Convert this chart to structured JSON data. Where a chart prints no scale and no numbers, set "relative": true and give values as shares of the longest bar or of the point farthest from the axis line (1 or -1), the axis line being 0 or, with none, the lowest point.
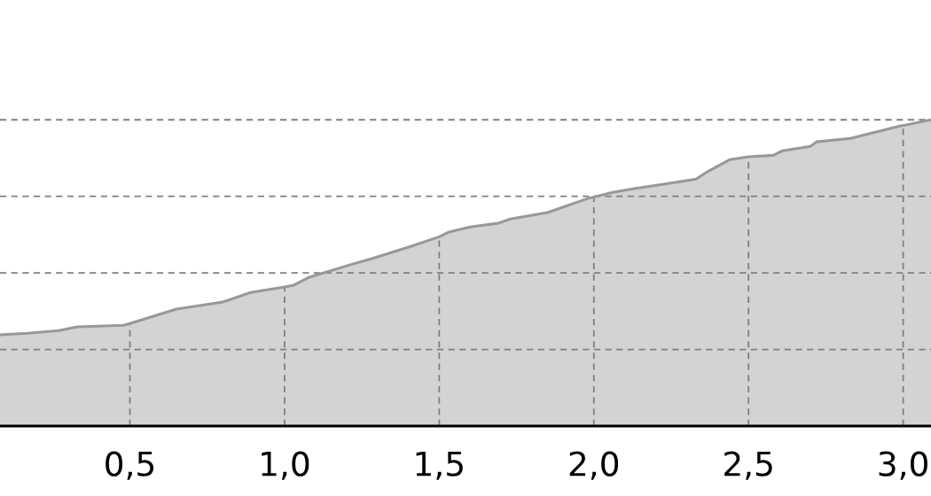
{
  "chart_data": {
    "type": "area",
    "relative": true,
    "x": [
      0.08,
      0.17,
      0.27,
      0.33,
      0.48,
      0.5,
      0.65,
      0.8,
      0.89,
      1.0,
      1.03,
      1.08,
      1.22,
      1.28,
      1.41,
      1.5,
      1.53,
      1.6,
      1.69,
      1.73,
      1.85,
      1.98,
      2.06,
      2.13,
      2.22,
      2.33,
      2.37,
      2.44,
      2.5,
      2.58,
      2.61,
      2.7,
      2.72,
      2.83,
      2.99,
      3.01,
      3.09
    ],
    "values": [
      0.298,
      0.303,
      0.312,
      0.324,
      0.329,
      0.335,
      0.382,
      0.405,
      0.436,
      0.454,
      0.46,
      0.486,
      0.529,
      0.546,
      0.587,
      0.618,
      0.633,
      0.65,
      0.662,
      0.676,
      0.697,
      0.743,
      0.763,
      0.775,
      0.789,
      0.806,
      0.832,
      0.87,
      0.879,
      0.884,
      0.899,
      0.913,
      0.928,
      0.939,
      0.98,
      0.983,
      1.0
    ],
    "color": "#d3d3d3",
    "xlim": [
      0.08,
      3.09
    ],
    "xticks": [
      {
        "value": 0.5,
        "label": "0,5"
      },
      {
        "value": 1.0,
        "label": "1,0"
      },
      {
        "value": 1.5,
        "label": "1,5"
      },
      {
        "value": 2.0,
        "label": "2,0"
      },
      {
        "value": 2.5,
        "label": "2,5"
      },
      {
        "value": 3.0,
        "label": "3,0"
      }
    ],
    "grid": true,
    "tick_labels": "x"
  }
}
